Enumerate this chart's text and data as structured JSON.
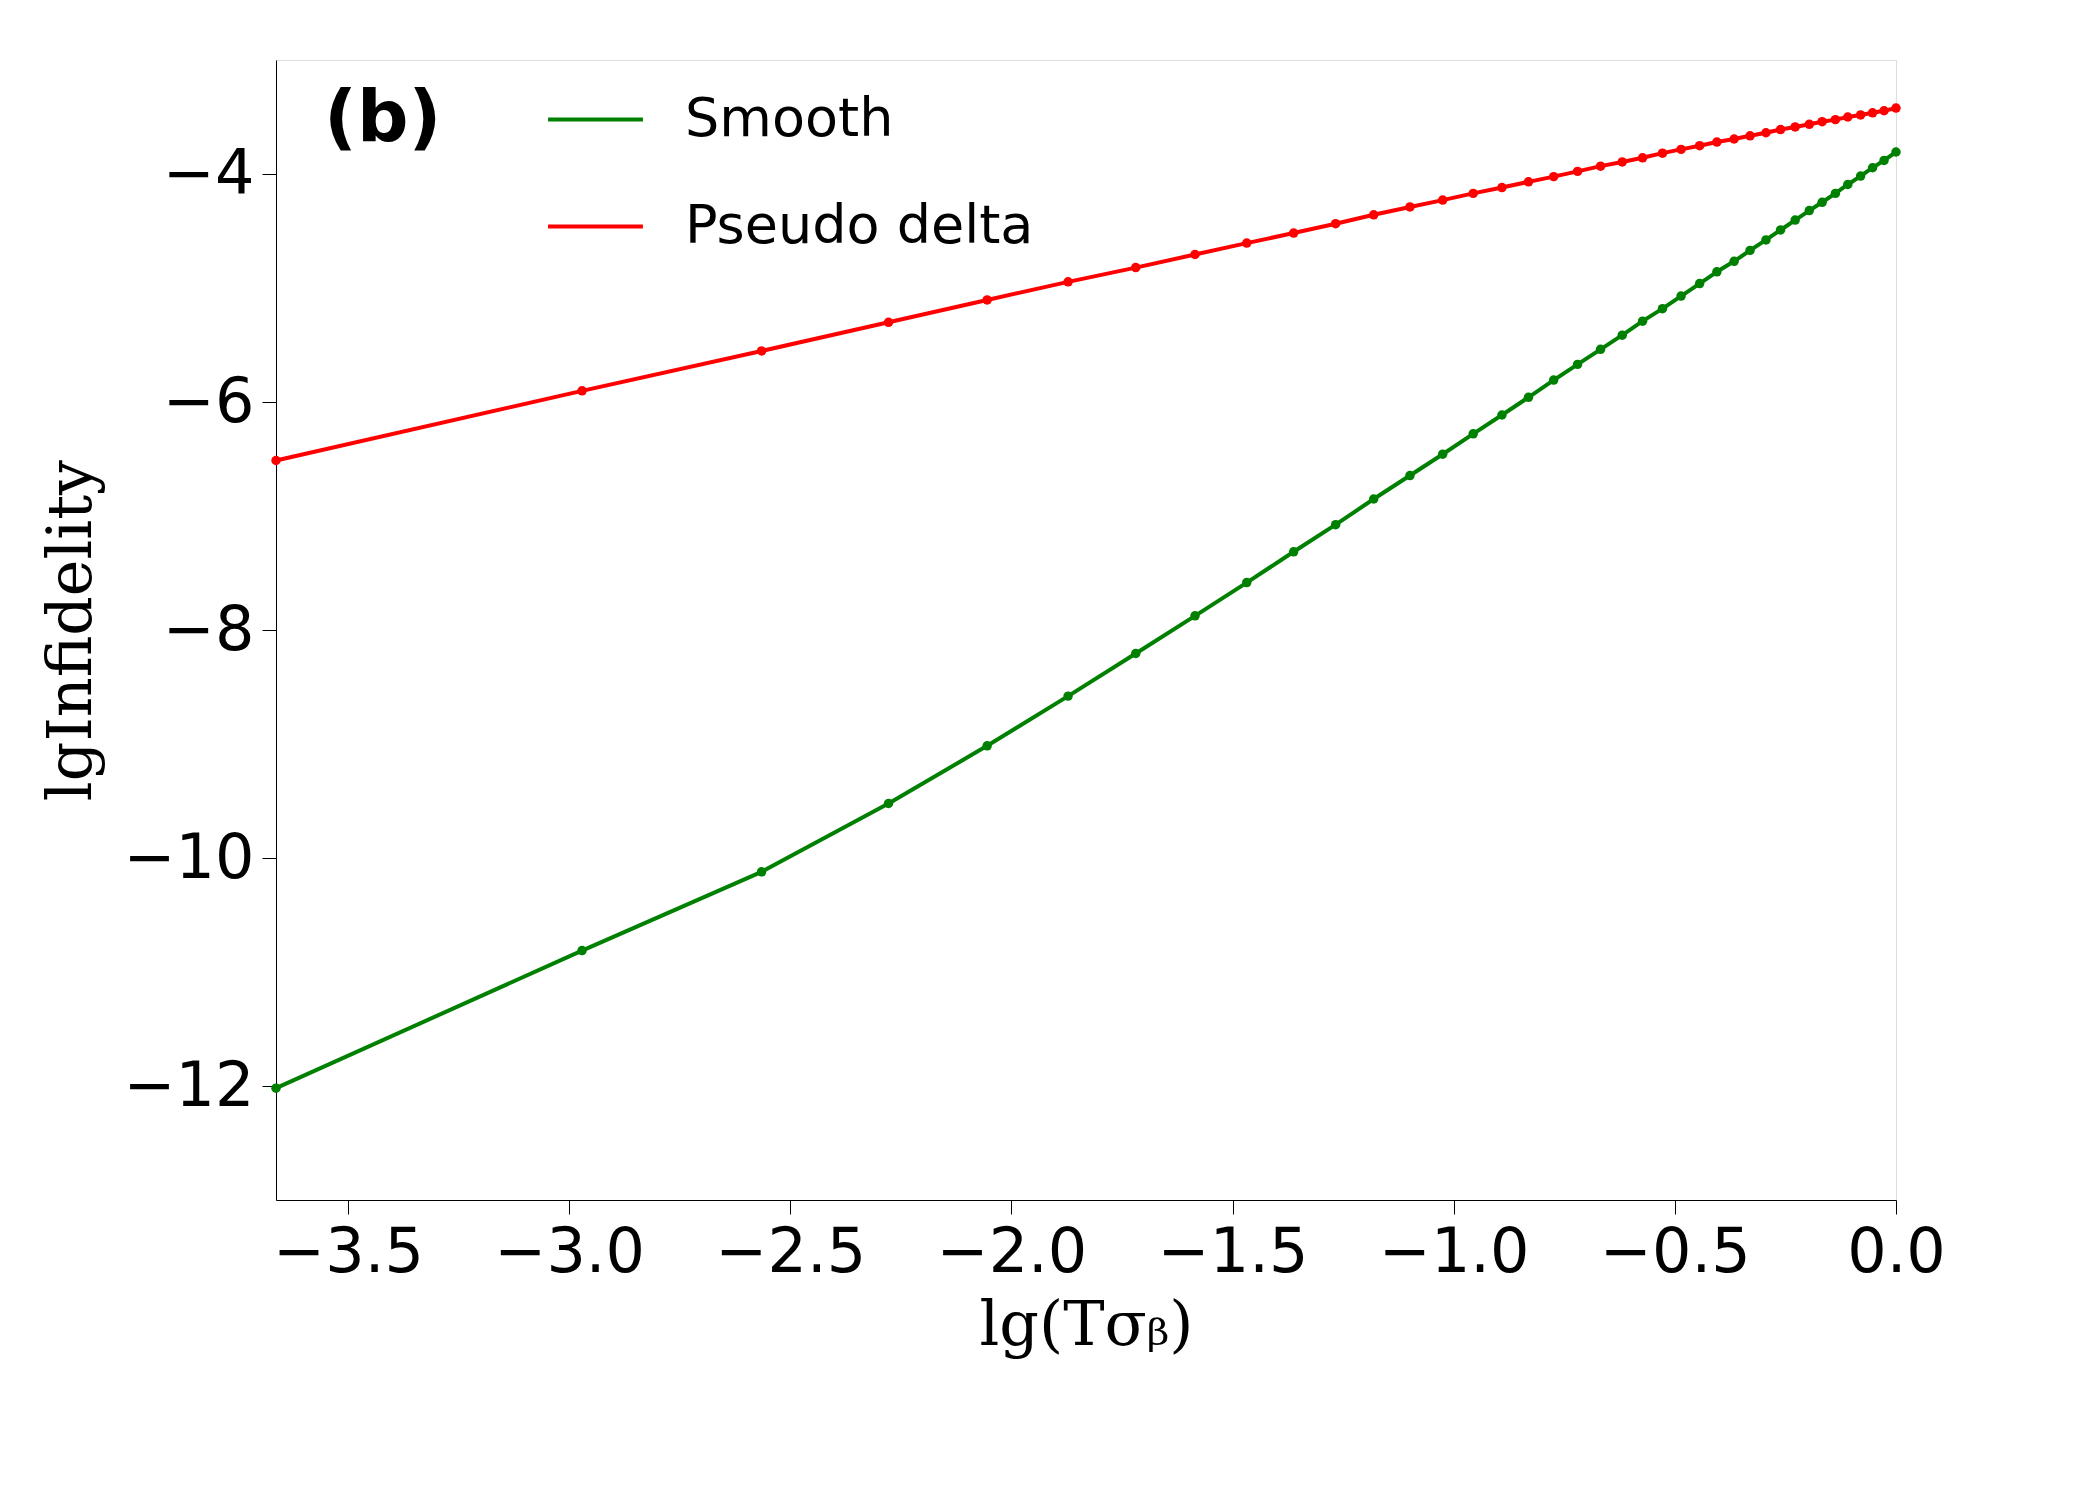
{
  "chart_data": {
    "type": "line",
    "xlabel": "lg(Tσᵦ)",
    "ylabel": "lgInfidelity",
    "annotations": [
      "(b)"
    ],
    "x": [
      -3.663,
      -2.971,
      -2.565,
      -2.278,
      -2.055,
      -1.872,
      -1.719,
      -1.585,
      -1.468,
      -1.362,
      -1.267,
      -1.181,
      -1.099,
      -1.025,
      -0.956,
      -0.891,
      -0.831,
      -0.774,
      -0.72,
      -0.668,
      -0.619,
      -0.573,
      -0.528,
      -0.486,
      -0.444,
      -0.405,
      -0.366,
      -0.33,
      -0.294,
      -0.261,
      -0.228,
      -0.196,
      -0.167,
      -0.137,
      -0.109,
      -0.08,
      -0.053,
      -0.027,
      0
    ],
    "series": [
      {
        "name": "Smooth",
        "color": "#008000",
        "values": [
          -12.019,
          -10.812,
          -10.121,
          -9.522,
          -9.016,
          -8.58,
          -8.206,
          -7.876,
          -7.584,
          -7.314,
          -7.076,
          -6.851,
          -6.645,
          -6.458,
          -6.279,
          -6.114,
          -5.959,
          -5.808,
          -5.67,
          -5.538,
          -5.414,
          -5.291,
          -5.181,
          -5.071,
          -4.961,
          -4.858,
          -4.766,
          -4.67,
          -4.578,
          -4.491,
          -4.404,
          -4.321,
          -4.248,
          -4.17,
          -4.092,
          -4.018,
          -3.945,
          -3.881,
          -3.807
        ]
      },
      {
        "name": "Pseudo delta",
        "color": "#ff0000",
        "values": [
          -6.513,
          -5.902,
          -5.552,
          -5.301,
          -5.105,
          -4.946,
          -4.821,
          -4.706,
          -4.606,
          -4.518,
          -4.436,
          -4.358,
          -4.289,
          -4.229,
          -4.17,
          -4.119,
          -4.069,
          -4.023,
          -3.977,
          -3.931,
          -3.894,
          -3.858,
          -3.817,
          -3.784,
          -3.752,
          -3.72,
          -3.693,
          -3.665,
          -3.638,
          -3.61,
          -3.587,
          -3.564,
          -3.541,
          -3.523,
          -3.5,
          -3.482,
          -3.463,
          -3.445,
          -3.422
        ]
      }
    ],
    "xlim": [
      -3.663,
      0
    ],
    "ylim": [
      -13,
      -3
    ],
    "xticks": [
      {
        "value": -3.5,
        "label": "−3.5"
      },
      {
        "value": -3.0,
        "label": "−3.0"
      },
      {
        "value": -2.5,
        "label": "−2.5"
      },
      {
        "value": -2.0,
        "label": "−2.0"
      },
      {
        "value": -1.5,
        "label": "−1.5"
      },
      {
        "value": -1.0,
        "label": "−1.0"
      },
      {
        "value": -0.5,
        "label": "−0.5"
      },
      {
        "value": 0,
        "label": "0.0"
      }
    ],
    "yticks": [
      {
        "value": -12,
        "label": "−12"
      },
      {
        "value": -10,
        "label": "−10"
      },
      {
        "value": -8,
        "label": "−8"
      },
      {
        "value": -6,
        "label": "−6"
      },
      {
        "value": -4,
        "label": "−4"
      }
    ],
    "grid": false,
    "legend": "top left",
    "marker": "circle",
    "line_style": "solid"
  }
}
